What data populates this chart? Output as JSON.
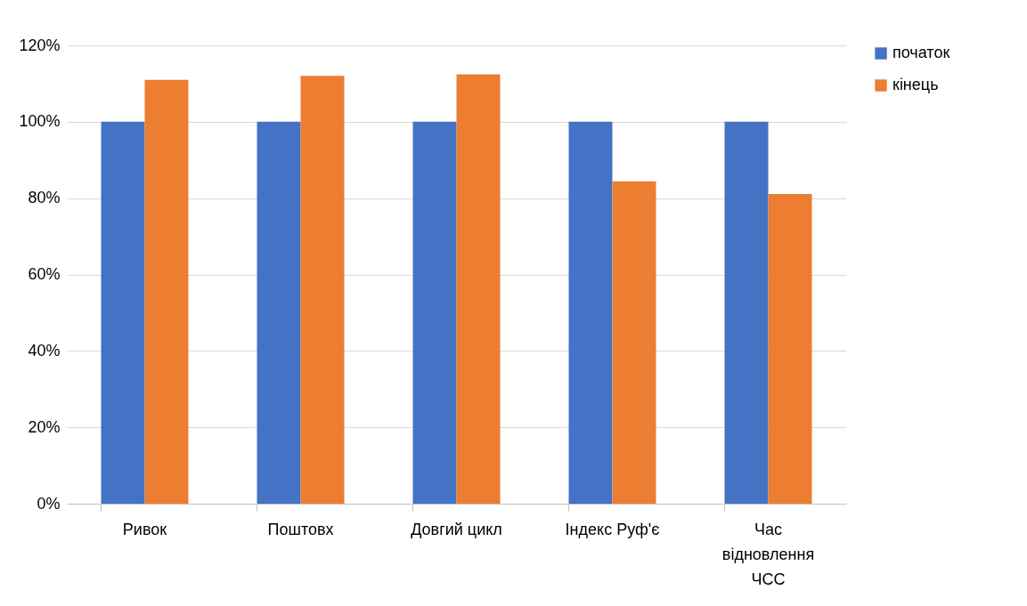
{
  "chart_data": {
    "type": "bar",
    "categories": [
      "Ривок",
      "Поштовх",
      "Довгий цикл",
      "Індекс Руф'є",
      "Час відновлення ЧСС"
    ],
    "series": [
      {
        "name": "початок",
        "color": "#4472c4",
        "values": [
          100,
          100,
          100,
          100,
          100
        ]
      },
      {
        "name": "кінець",
        "color": "#ed7d31",
        "values": [
          111,
          112,
          112.4,
          84.4,
          81.1
        ]
      }
    ],
    "ylim": [
      0,
      120
    ],
    "yticks": [
      {
        "value": 0,
        "label": "0%"
      },
      {
        "value": 20,
        "label": "20%"
      },
      {
        "value": 40,
        "label": "40%"
      },
      {
        "value": 60,
        "label": "60%"
      },
      {
        "value": 80,
        "label": "80%"
      },
      {
        "value": 100,
        "label": "100%"
      },
      {
        "value": 120,
        "label": "120%"
      }
    ],
    "grid": "y",
    "legend": "right"
  }
}
